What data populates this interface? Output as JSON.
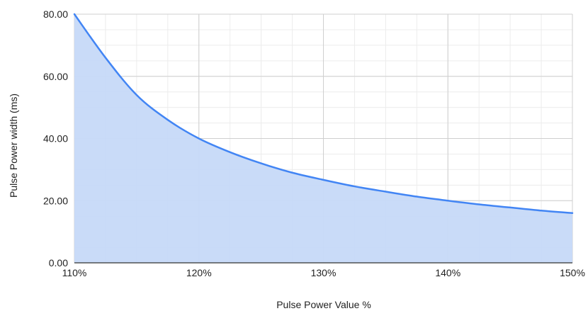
{
  "chart_data": {
    "type": "area",
    "title": "",
    "xlabel": "Pulse Power Value %",
    "ylabel": "Pulse Power width (ms)",
    "xlim": [
      110,
      150
    ],
    "ylim": [
      0,
      80
    ],
    "x_ticks": [
      {
        "value": 110,
        "label": "110%"
      },
      {
        "value": 120,
        "label": "120%"
      },
      {
        "value": 130,
        "label": "130%"
      },
      {
        "value": 140,
        "label": "140%"
      },
      {
        "value": 150,
        "label": "150%"
      }
    ],
    "y_ticks": [
      {
        "value": 0,
        "label": "0.00"
      },
      {
        "value": 20,
        "label": "20.00"
      },
      {
        "value": 40,
        "label": "40.00"
      },
      {
        "value": 60,
        "label": "60.00"
      },
      {
        "value": 80,
        "label": "80.00"
      }
    ],
    "grid": true,
    "legend": "none",
    "series": [
      {
        "x": [
          110,
          112.5,
          115,
          117.5,
          120,
          122.5,
          125,
          127.5,
          130,
          132.5,
          135,
          137.5,
          140,
          142.5,
          145,
          147.5,
          150
        ],
        "y": [
          80,
          66,
          54,
          46,
          40,
          35.6,
          32,
          29,
          26.7,
          24.6,
          22.9,
          21.3,
          20,
          18.8,
          17.8,
          16.8,
          16
        ],
        "line_color": "#4285f4",
        "fill_color": "#c6d9f8"
      }
    ]
  }
}
